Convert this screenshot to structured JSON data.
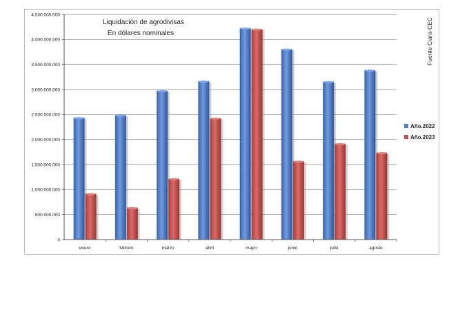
{
  "chart_data": {
    "type": "bar",
    "title": "Liquidación de agrodivisas",
    "subtitle": "En dólares nominales",
    "source": "Fuente Ciara-CEC",
    "categories": [
      "enero",
      "febrero",
      "marzo",
      "abril",
      "mayo",
      "junio",
      "julio",
      "agosto"
    ],
    "series": [
      {
        "name": "Año.2022",
        "color": "#4f7fc9",
        "values": [
          2440000000,
          2490000000,
          2980000000,
          3170000000,
          4230000000,
          3810000000,
          3160000000,
          3390000000
        ]
      },
      {
        "name": "Año.2023",
        "color": "#c0504d",
        "values": [
          920000000,
          640000000,
          1220000000,
          2430000000,
          4210000000,
          1570000000,
          1920000000,
          1740000000
        ]
      }
    ],
    "y_ticks": [
      "0",
      "500.000.000",
      "1.000.000.000",
      "1.500.000.000",
      "2.000.000.000",
      "2.500.000.000",
      "3.000.000.000",
      "3.500.000.000",
      "4.000.000.000",
      "4.500.000.000"
    ],
    "ylim": [
      0,
      4500000000
    ],
    "grid": true,
    "legend_position": "right"
  }
}
